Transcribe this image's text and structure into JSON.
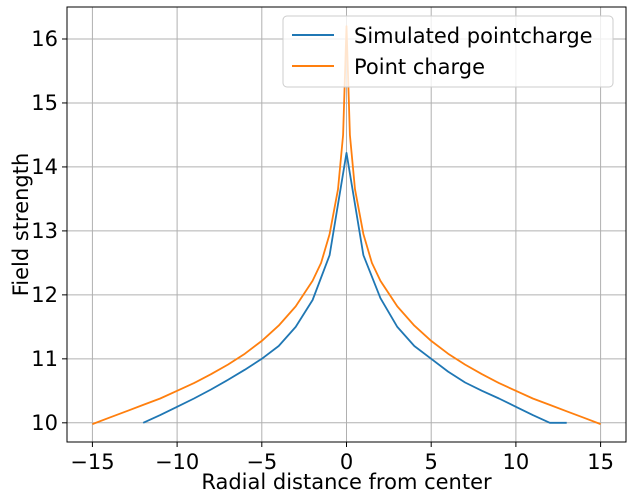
{
  "chart_data": {
    "type": "line",
    "title": "",
    "xlabel": "Radial distance from center",
    "ylabel": "Field strength",
    "xlim": [
      -16.5,
      16.5
    ],
    "ylim": [
      9.7,
      16.5
    ],
    "xticks": [
      -15,
      -10,
      -5,
      0,
      5,
      10,
      15
    ],
    "xtick_labels": [
      "−15",
      "−10",
      "−5",
      "0",
      "5",
      "10",
      "15"
    ],
    "yticks": [
      10,
      11,
      12,
      13,
      14,
      15,
      16
    ],
    "ytick_labels": [
      "10",
      "11",
      "12",
      "13",
      "14",
      "15",
      "16"
    ],
    "grid": true,
    "legend_position": "top-right",
    "series": [
      {
        "name": "Simulated pointcharge",
        "color": "#1f77b4",
        "x": [
          -12,
          -11,
          -10,
          -9,
          -8,
          -7,
          -6,
          -5,
          -4,
          -3,
          -2,
          -1,
          0,
          1,
          2,
          3,
          4,
          5,
          6,
          7,
          8,
          9,
          10,
          11,
          12,
          13
        ],
        "y": [
          10.0,
          10.12,
          10.25,
          10.38,
          10.52,
          10.67,
          10.83,
          11.0,
          11.2,
          11.5,
          11.92,
          12.62,
          14.22,
          12.62,
          11.95,
          11.5,
          11.2,
          11.0,
          10.8,
          10.63,
          10.5,
          10.38,
          10.25,
          10.12,
          10.0,
          10.0
        ]
      },
      {
        "name": "Point charge",
        "color": "#ff7f0e",
        "x": [
          -15,
          -14,
          -13,
          -12,
          -11,
          -10,
          -9,
          -8,
          -7,
          -6,
          -5,
          -4,
          -3,
          -2,
          -1.5,
          -1,
          -0.5,
          -0.2,
          0,
          0.2,
          0.5,
          1,
          1.5,
          2,
          3,
          4,
          5,
          6,
          7,
          8,
          9,
          10,
          11,
          12,
          13,
          14,
          15
        ],
        "y": [
          9.98,
          10.08,
          10.18,
          10.28,
          10.38,
          10.5,
          10.62,
          10.76,
          10.91,
          11.08,
          11.28,
          11.52,
          11.82,
          12.22,
          12.5,
          12.95,
          13.65,
          14.5,
          16.2,
          14.5,
          13.65,
          12.95,
          12.5,
          12.22,
          11.82,
          11.52,
          11.28,
          11.08,
          10.91,
          10.76,
          10.62,
          10.5,
          10.38,
          10.28,
          10.18,
          10.08,
          9.98
        ]
      }
    ]
  }
}
